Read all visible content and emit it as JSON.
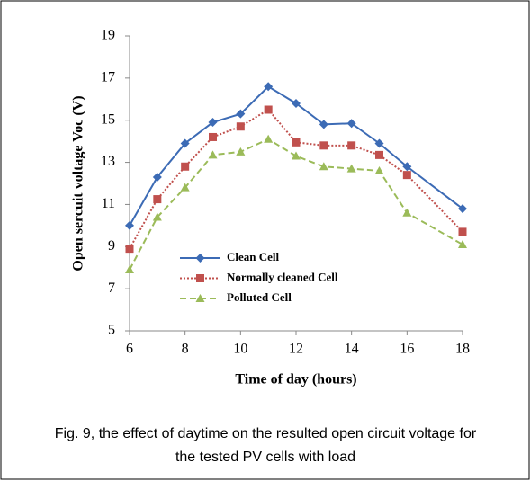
{
  "chart_data": {
    "type": "line",
    "x_label": "Time of day (hours)",
    "y_label": "Open sercuit voltage Voc (V)",
    "caption": "Fig. 9, the effect of daytime on the resulted open circuit voltage for the tested PV cells with load",
    "x": [
      6,
      7,
      8,
      9,
      10,
      11,
      12,
      13,
      14,
      15,
      16,
      18
    ],
    "series": [
      {
        "name": "Clean Cell",
        "color": "#3c6bb5",
        "dash": "solid",
        "marker": "diamond",
        "values": [
          10.0,
          12.3,
          13.9,
          14.9,
          15.3,
          16.6,
          15.8,
          14.8,
          14.85,
          13.9,
          12.8,
          10.8
        ]
      },
      {
        "name": "Normally cleaned Cell",
        "color": "#c0504d",
        "dash": "dotted",
        "marker": "square",
        "values": [
          8.9,
          11.25,
          12.8,
          14.2,
          14.7,
          15.5,
          13.95,
          13.8,
          13.8,
          13.35,
          12.4,
          9.7
        ]
      },
      {
        "name": "Polluted Cell",
        "color": "#9bbb59",
        "dash": "dashed",
        "marker": "triangle",
        "values": [
          7.9,
          10.4,
          11.8,
          13.35,
          13.5,
          14.1,
          13.3,
          12.8,
          12.7,
          12.6,
          10.6,
          9.1
        ]
      }
    ],
    "xlim": [
      6,
      18
    ],
    "xticks": [
      6,
      8,
      10,
      12,
      14,
      16,
      18
    ],
    "ylim": [
      5,
      19
    ],
    "yticks": [
      5,
      7,
      9,
      11,
      13,
      15,
      17,
      19
    ],
    "grid": false
  }
}
